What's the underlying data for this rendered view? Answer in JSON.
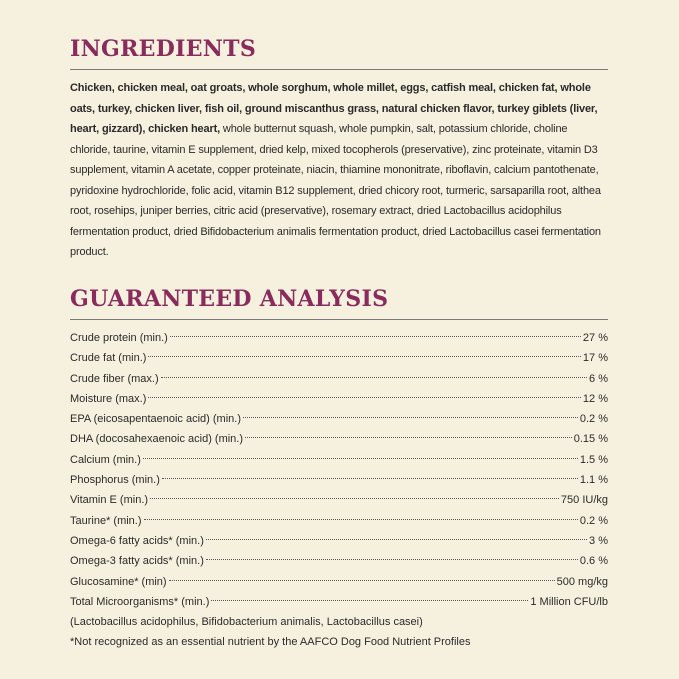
{
  "ingredients": {
    "title": "INGREDIENTS",
    "bold_text": "Chicken, chicken meal, oat groats, whole sorghum, whole millet, eggs, catfish meal, chicken fat, whole oats, turkey, chicken liver, fish oil, ground miscanthus grass, natural chicken flavor, turkey giblets (liver, heart, gizzard), chicken heart,",
    "text": "whole butternut squash, whole pumpkin, salt, potassium chloride, choline chloride, taurine, vitamin E supplement, dried kelp, mixed tocopherols (preservative), zinc proteinate, vitamin D3 supplement, vitamin A acetate, copper proteinate, niacin, thiamine mononitrate, riboflavin, calcium pantothenate, pyridoxine hydrochloride, folic acid, vitamin B12 supplement, dried chicory root, turmeric, sarsaparilla root, althea root, rosehips, juniper berries, citric acid (preservative), rosemary extract, dried Lactobacillus acidophilus fermentation product, dried Bifidobacterium animalis fermentation product, dried Lactobacillus casei fermentation product."
  },
  "analysis": {
    "title": "GUARANTEED ANALYSIS",
    "rows": [
      {
        "label": "Crude protein (min.)",
        "value": "27 %"
      },
      {
        "label": "Crude fat (min.)",
        "value": "17 %"
      },
      {
        "label": "Crude fiber (max.)",
        "value": "6 %"
      },
      {
        "label": "Moisture (max.)",
        "value": "12 %"
      },
      {
        "label": "EPA (eicosapentaenoic acid) (min.)",
        "value": "0.2 %"
      },
      {
        "label": "DHA (docosahexaenoic acid) (min.)",
        "value": "0.15 %"
      },
      {
        "label": "Calcium (min.)",
        "value": "1.5 %"
      },
      {
        "label": "Phosphorus (min.)",
        "value": "1.1 %"
      },
      {
        "label": "Vitamin E (min.)",
        "value": "750 IU/kg"
      },
      {
        "label": "Taurine* (min.)",
        "value": "0.2 %"
      },
      {
        "label": "Omega-6 fatty acids* (min.)",
        "value": "3 %"
      },
      {
        "label": "Omega-3 fatty acids* (min.)",
        "value": "0.6 %"
      },
      {
        "label": "Glucosamine* (min)",
        "value": "500 mg/kg"
      },
      {
        "label": "Total Microorganisms* (min.)",
        "value": "1 Million CFU/lb"
      }
    ],
    "notes": [
      "(Lactobacillus acidophilus, Bifidobacterium animalis, Lactobacillus casei)",
      "*Not recognized as an essential nutrient by the AAFCO Dog Food Nutrient Profiles"
    ]
  }
}
